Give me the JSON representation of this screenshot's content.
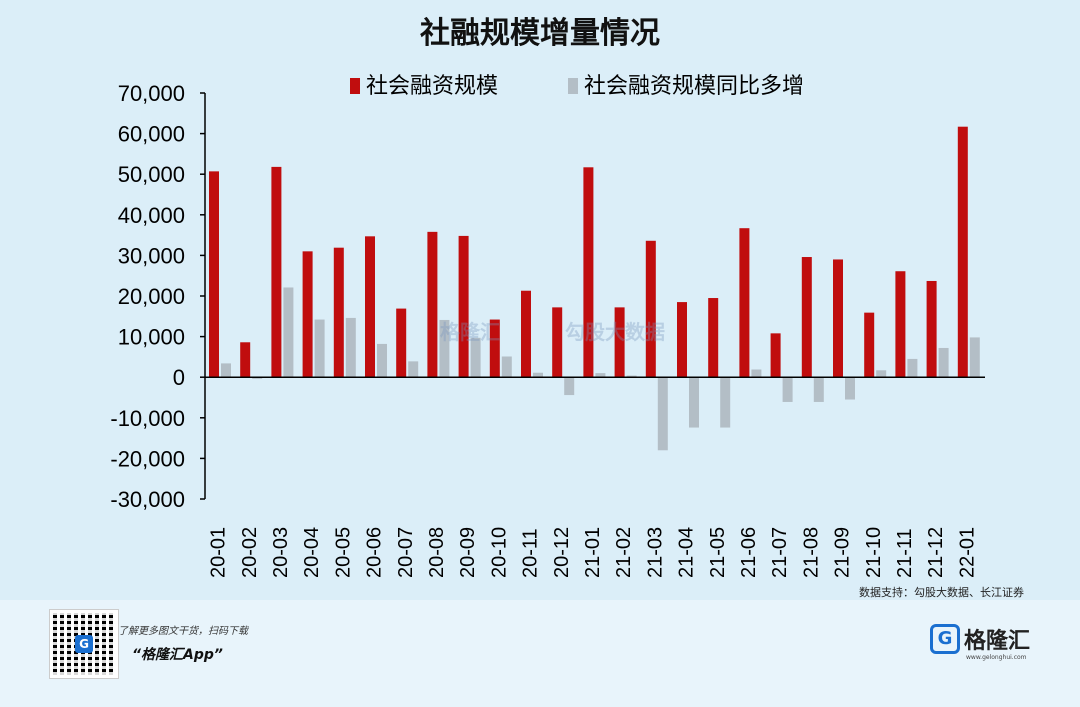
{
  "title": "社融规模增量情况",
  "source": "数据支持：勾股大数据、长江证券",
  "footer": {
    "line1": "了解更多图文干货，扫码下载",
    "line2": "“格隆汇App”",
    "brand_name": "格隆汇",
    "brand_icon": "G",
    "brand_url": "www.gelonghui.com",
    "qr_logo": "G"
  },
  "watermark": {
    "left": "格隆汇",
    "right": "勾股大数据"
  },
  "colors": {
    "series1": "#c00d0e",
    "series2": "#b3bec6",
    "background": "#dbeef8"
  },
  "chart_data": {
    "type": "bar",
    "categories": [
      "20-01",
      "20-02",
      "20-03",
      "20-04",
      "20-05",
      "20-06",
      "20-07",
      "20-08",
      "20-09",
      "20-10",
      "20-11",
      "20-12",
      "21-01",
      "21-02",
      "21-03",
      "21-04",
      "21-05",
      "21-06",
      "21-07",
      "21-08",
      "21-09",
      "21-10",
      "21-11",
      "21-12",
      "22-01"
    ],
    "series": [
      {
        "name": "社会融资规模",
        "values": [
          50700,
          8600,
          51800,
          31000,
          31900,
          34700,
          16900,
          35800,
          34800,
          14200,
          21300,
          17200,
          51700,
          17200,
          33600,
          18500,
          19500,
          36700,
          10800,
          29600,
          29000,
          15900,
          26100,
          23700,
          61700
        ]
      },
      {
        "name": "社会融资规模同比多增",
        "values": [
          3400,
          -400,
          22100,
          14200,
          14600,
          8200,
          3900,
          14100,
          9700,
          5100,
          1100,
          -4400,
          1000,
          400,
          -18000,
          -12400,
          -12400,
          1900,
          -6100,
          -6100,
          -5500,
          1700,
          4500,
          7200,
          9800
        ]
      }
    ],
    "yticks": [
      "70,000",
      "60,000",
      "50,000",
      "40,000",
      "30,000",
      "20,000",
      "10,000",
      "0",
      "-10,000",
      "-20,000",
      "-30,000"
    ],
    "ylim": [
      -30000,
      70000
    ],
    "legend_position": "top",
    "grid": false
  }
}
